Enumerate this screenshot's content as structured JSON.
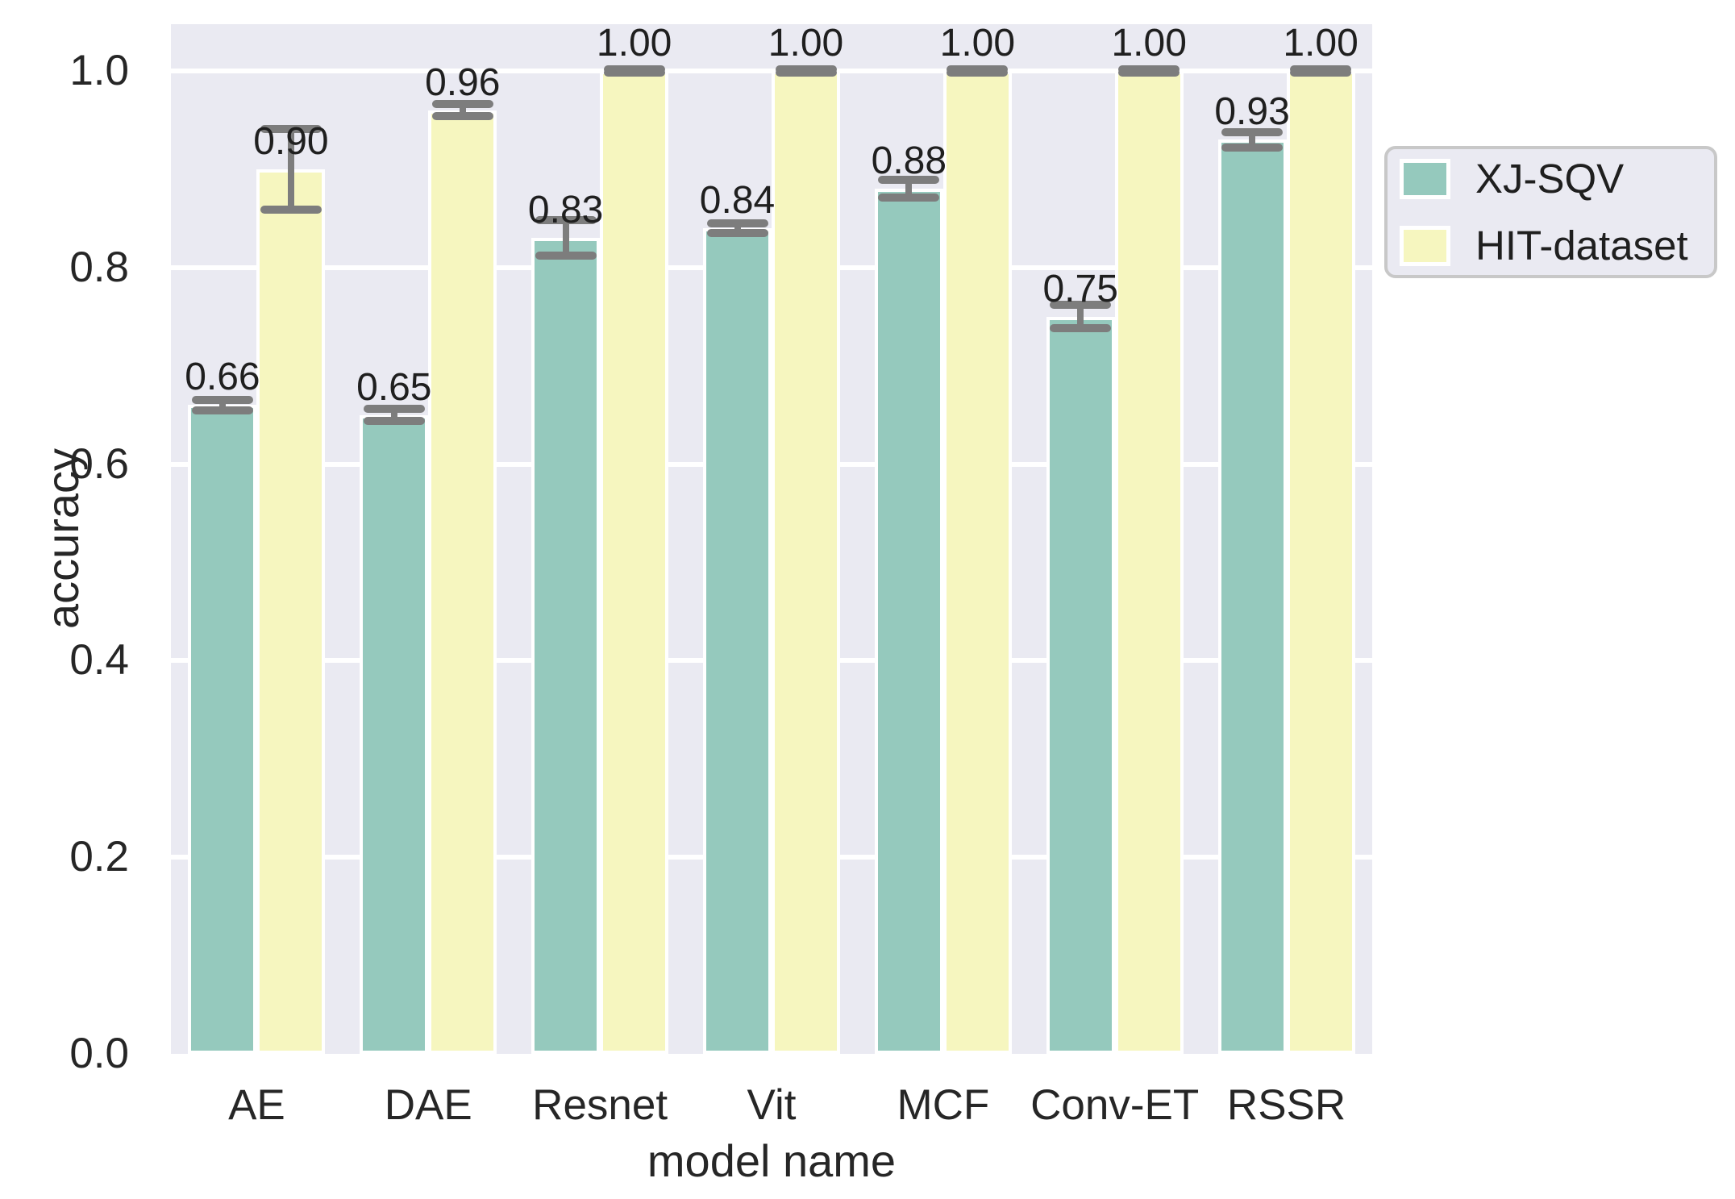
{
  "chart_data": {
    "type": "bar",
    "title": "",
    "xlabel": "model name",
    "ylabel": "accuracy",
    "categories": [
      "AE",
      "DAE",
      "Resnet",
      "Vit",
      "MCF",
      "Conv-ET",
      "RSSR"
    ],
    "series": [
      {
        "name": "XJ-SQV",
        "color": "#95c9bd",
        "values": [
          0.66,
          0.65,
          0.83,
          0.84,
          0.88,
          0.75,
          0.93
        ],
        "errors": [
          0.005,
          0.006,
          0.018,
          0.005,
          0.009,
          0.012,
          0.008
        ],
        "bar_labels": [
          "0.66",
          "0.65",
          "0.83",
          "0.84",
          "0.88",
          "0.75",
          "0.93"
        ]
      },
      {
        "name": "HIT-dataset",
        "color": "#f6f6bf",
        "values": [
          0.9,
          0.96,
          1.0,
          1.0,
          1.0,
          1.0,
          1.0
        ],
        "errors": [
          0.041,
          0.006,
          0.002,
          0.002,
          0.002,
          0.002,
          0.002
        ],
        "bar_labels": [
          "0.90",
          "0.96",
          "1.00",
          "1.00",
          "1.00",
          "1.00",
          "1.00"
        ]
      }
    ],
    "yticks": [
      "0.0",
      "0.2",
      "0.4",
      "0.6",
      "0.8",
      "1.0"
    ],
    "ytick_values": [
      0,
      0.2,
      0.4,
      0.6,
      0.8,
      1.0
    ],
    "ylim": [
      0,
      1.048
    ],
    "grid": true,
    "legend_position": "upper right, outside plot area",
    "colors": {
      "plot_background": "#eaeaf2",
      "gridline": "#ffffff",
      "bar_edge": "#ffffff",
      "error_bar": "#7d7d7d",
      "text": "#262626",
      "legend_background": "#eaeaf2",
      "legend_border": "#c8c8c8"
    }
  }
}
